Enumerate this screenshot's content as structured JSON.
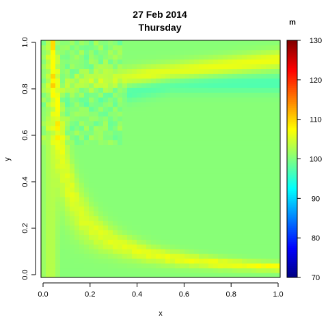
{
  "chart_data": {
    "type": "heatmap",
    "title": "27 Feb 2014",
    "subtitle": "Thursday",
    "xlabel": "x",
    "ylabel": "y",
    "xlim": [
      0,
      1
    ],
    "ylim": [
      0,
      1
    ],
    "x_ticks": [
      "0.0",
      "0.2",
      "0.4",
      "0.6",
      "0.8",
      "1.0"
    ],
    "y_ticks": [
      "0.0",
      "0.2",
      "0.4",
      "0.6",
      "0.8",
      "1.0"
    ],
    "grid": false,
    "grid_resolution": 50,
    "colorbar": {
      "label": "m",
      "min": 70,
      "max": 130,
      "ticks": [
        "70",
        "80",
        "90",
        "100",
        "110",
        "120",
        "130"
      ],
      "colormap": "jet",
      "position": "right"
    },
    "field": {
      "description_values": "base level ~100 m, ridge ~108 m along a curve from left edge up to top-right, trough ~97 m just above ridge",
      "base_value": 100.5,
      "ridge_peak": 108,
      "trough_value": 97
    }
  }
}
